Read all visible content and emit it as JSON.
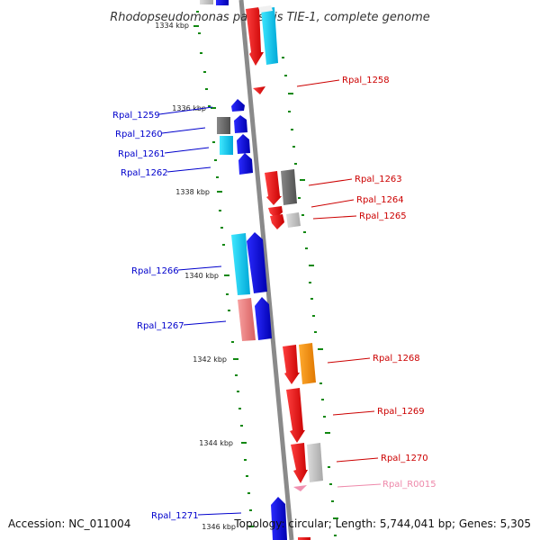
{
  "title": "Rhodopseudomonas palustris TIE-1, complete genome",
  "accession": "Accession: NC_011004",
  "topology": "Topology: circular; Length: 5,744,041 bp; Genes: 5,305",
  "scale_labels": {
    "k1334": "1334 kbp",
    "k1336": "1336 kbp",
    "k1338": "1338 kbp",
    "k1340": "1340 kbp",
    "k1342": "1342 kbp",
    "k1344": "1344 kbp",
    "k1346": "1346 kbp"
  },
  "genes_left": {
    "g1259": "Rpal_1259",
    "g1260": "Rpal_1260",
    "g1261": "Rpal_1261",
    "g1262": "Rpal_1262",
    "g1266": "Rpal_1266",
    "g1267": "Rpal_1267",
    "g1271": "Rpal_1271"
  },
  "genes_right": {
    "g1258": "Rpal_1258",
    "g1263": "Rpal_1263",
    "g1264": "Rpal_1264",
    "g1265": "Rpal_1265",
    "g1268": "Rpal_1268",
    "g1269": "Rpal_1269",
    "g1270": "Rpal_1270",
    "gR0015": "Rpal_R0015"
  },
  "colors": {
    "forward_strand_label": "#0000cc",
    "reverse_strand_label": "#cc0000",
    "rna_label": "#ee88aa",
    "backbone": "#8a8a8a",
    "tick": "#118811"
  }
}
